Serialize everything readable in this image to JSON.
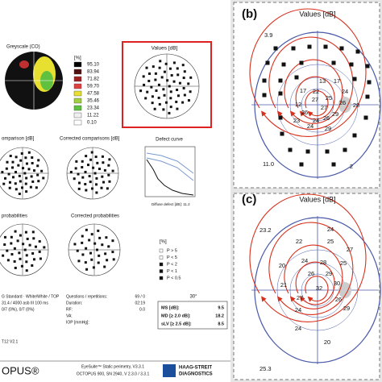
{
  "printout": {
    "greyscale_title": "Greyscale (CO)",
    "legend_unit": "[%]",
    "legend_values": [
      "95.10",
      "83.94",
      "71.82",
      "59.70",
      "47.58",
      "35.46",
      "23.34",
      "11.22",
      "0.10"
    ],
    "values_title": "Values [dB]",
    "comparison_title": "omparison [dB]",
    "corrected_comparisons_title": "Corrected comparisons [dB]",
    "defect_curve_title": "Defect curve",
    "diffuse_defect": "Diffuse defect [dB]: 11.2",
    "probabilities_title": "probabilities",
    "corrected_probabilities_title": "Corrected probabilities",
    "probability_unit": "[%]",
    "probability_levels": [
      "P > 5",
      "P < 5",
      "P < 2",
      "P < 1",
      "P < 0.5"
    ],
    "angle": "30°",
    "indices": [
      [
        "MS [dB]:",
        "9.5"
      ],
      [
        "MD [≥ 2.0 dB]:",
        "18.2"
      ],
      [
        "sLV [≥ 2.5 dB]:",
        "8.5"
      ]
    ],
    "test_info": [
      "G Standard · White/White / TOP",
      "31.4 / 4000 asb III 100 ms",
      "0/7 (0%), 0/7 (0%)"
    ],
    "exam_info": [
      [
        "Questions / repetitions:",
        "69 / 0"
      ],
      [
        "Duration:",
        "02:19"
      ],
      [
        "RF:",
        "0.0"
      ]
    ],
    "exam_labels": [
      "VA:",
      "IOP [mmHg]:"
    ],
    "version": "T12 V2.1",
    "brand": "OPUS®",
    "software": [
      "EyeSuite™ Static perimetry, V3.3.1",
      "OCTOPUS 900, SN 2940, V 2.3.0 / 3.3.1"
    ],
    "maker": [
      "HAAG-STREIT",
      "DIAGNOSTICS"
    ]
  },
  "panel_b": {
    "label": "(b)",
    "title": "Values [dB]",
    "corner_labels": [
      "3.9",
      "11.0"
    ],
    "values": [
      "13",
      "17",
      "17",
      "22",
      "24",
      "27",
      "25",
      "12",
      "26",
      "27",
      "26",
      "28",
      "29",
      "23",
      "24",
      "26",
      "29",
      "24",
      "2"
    ]
  },
  "panel_c": {
    "label": "(c)",
    "title": "Values [dB]",
    "corner_labels": [
      "23.2",
      "25.3"
    ],
    "values": [
      "24",
      "22",
      "25",
      "27",
      "20",
      "24",
      "28",
      "25",
      "21",
      "26",
      "29",
      "32",
      "30",
      "27",
      "26",
      "24",
      "29",
      "20",
      "24"
    ]
  }
}
